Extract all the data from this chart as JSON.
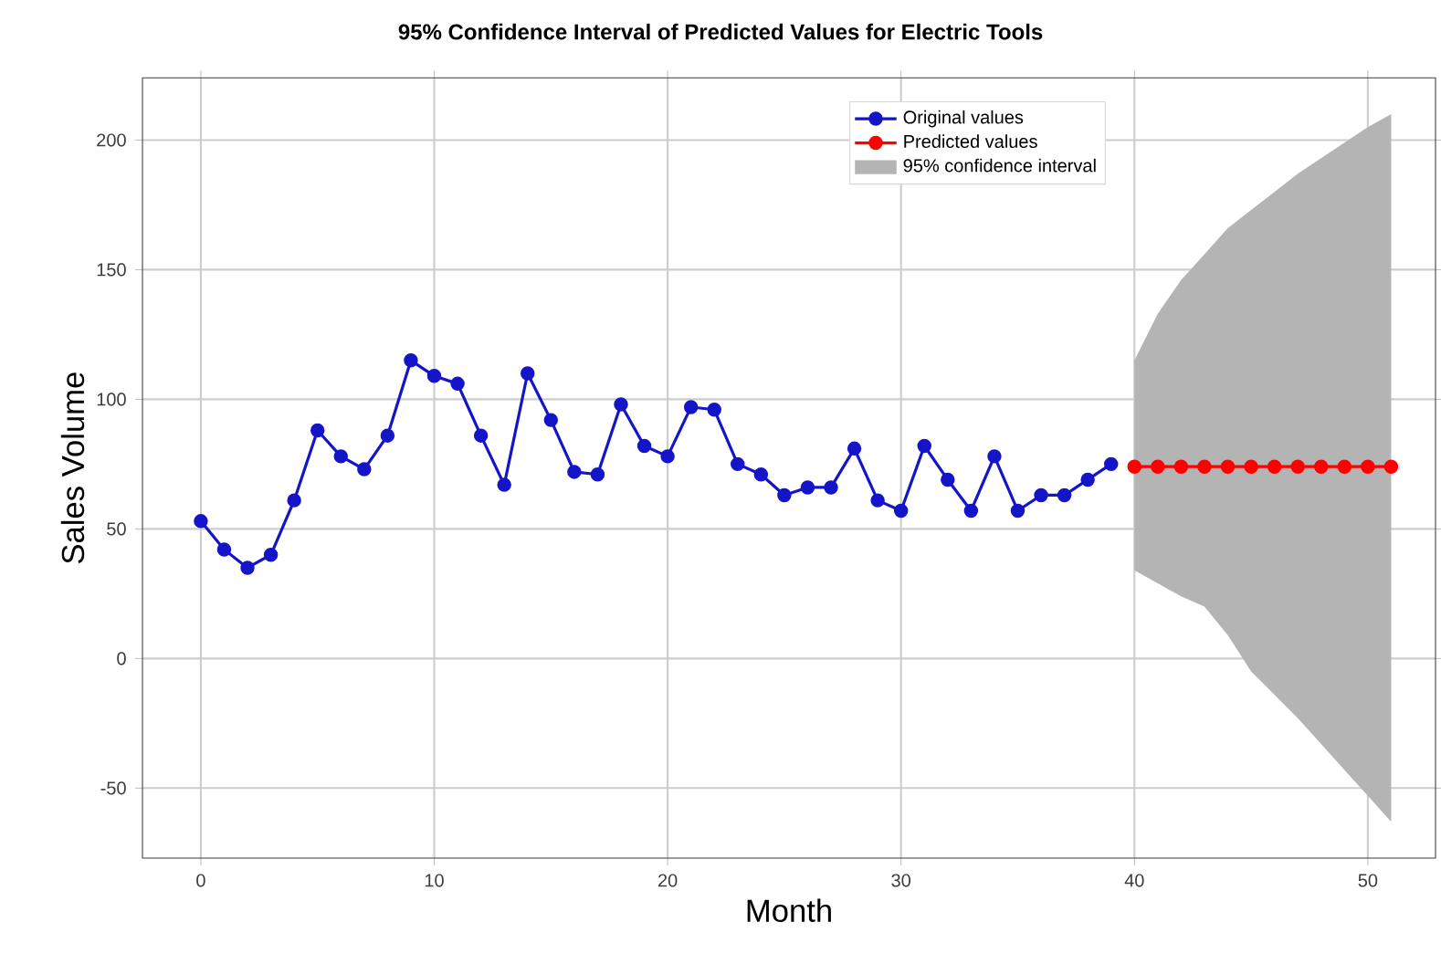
{
  "chart_data": {
    "type": "line",
    "title": "95% Confidence Interval of Predicted Values for Electric Tools",
    "xlabel": "Month",
    "ylabel": "Sales Volume",
    "series": [
      {
        "name": "Original values",
        "color": "#1414c8",
        "x": [
          0,
          1,
          2,
          3,
          4,
          5,
          6,
          7,
          8,
          9,
          10,
          11,
          12,
          13,
          14,
          15,
          16,
          17,
          18,
          19,
          20,
          21,
          22,
          23,
          24,
          25,
          26,
          27,
          28,
          29,
          30,
          31,
          32,
          33,
          34,
          35,
          36,
          37,
          38,
          39
        ],
        "values": [
          53,
          42,
          35,
          40,
          61,
          88,
          78,
          73,
          86,
          115,
          109,
          106,
          86,
          67,
          110,
          92,
          72,
          71,
          98,
          82,
          78,
          97,
          96,
          75,
          71,
          63,
          66,
          66,
          81,
          61,
          57,
          82,
          69,
          57,
          78,
          57,
          63,
          63,
          69,
          75
        ]
      },
      {
        "name": "Predicted values",
        "color": "#ff0000",
        "x": [
          40,
          41,
          42,
          43,
          44,
          45,
          46,
          47,
          48,
          49,
          50,
          51
        ],
        "values": [
          74,
          74,
          74,
          74,
          74,
          74,
          74,
          74,
          74,
          74,
          74,
          74
        ],
        "lower": [
          34,
          29,
          24,
          20,
          9,
          -5,
          -14,
          -23,
          -33,
          -43,
          -53,
          -63
        ],
        "upper": [
          115,
          133,
          146,
          156,
          166,
          173,
          180,
          187,
          193,
          199,
          205,
          210
        ]
      }
    ],
    "annotations": [
      "95% confidence interval"
    ],
    "xlim": [
      -2.5,
      52.9
    ],
    "ylim": [
      -77,
      224
    ],
    "xticks": [
      0,
      10,
      20,
      30,
      40,
      50
    ],
    "yticks": [
      -50,
      0,
      50,
      100,
      150,
      200
    ],
    "grid": true,
    "legend": "top right",
    "marker": "circle",
    "line_style": "solid"
  }
}
